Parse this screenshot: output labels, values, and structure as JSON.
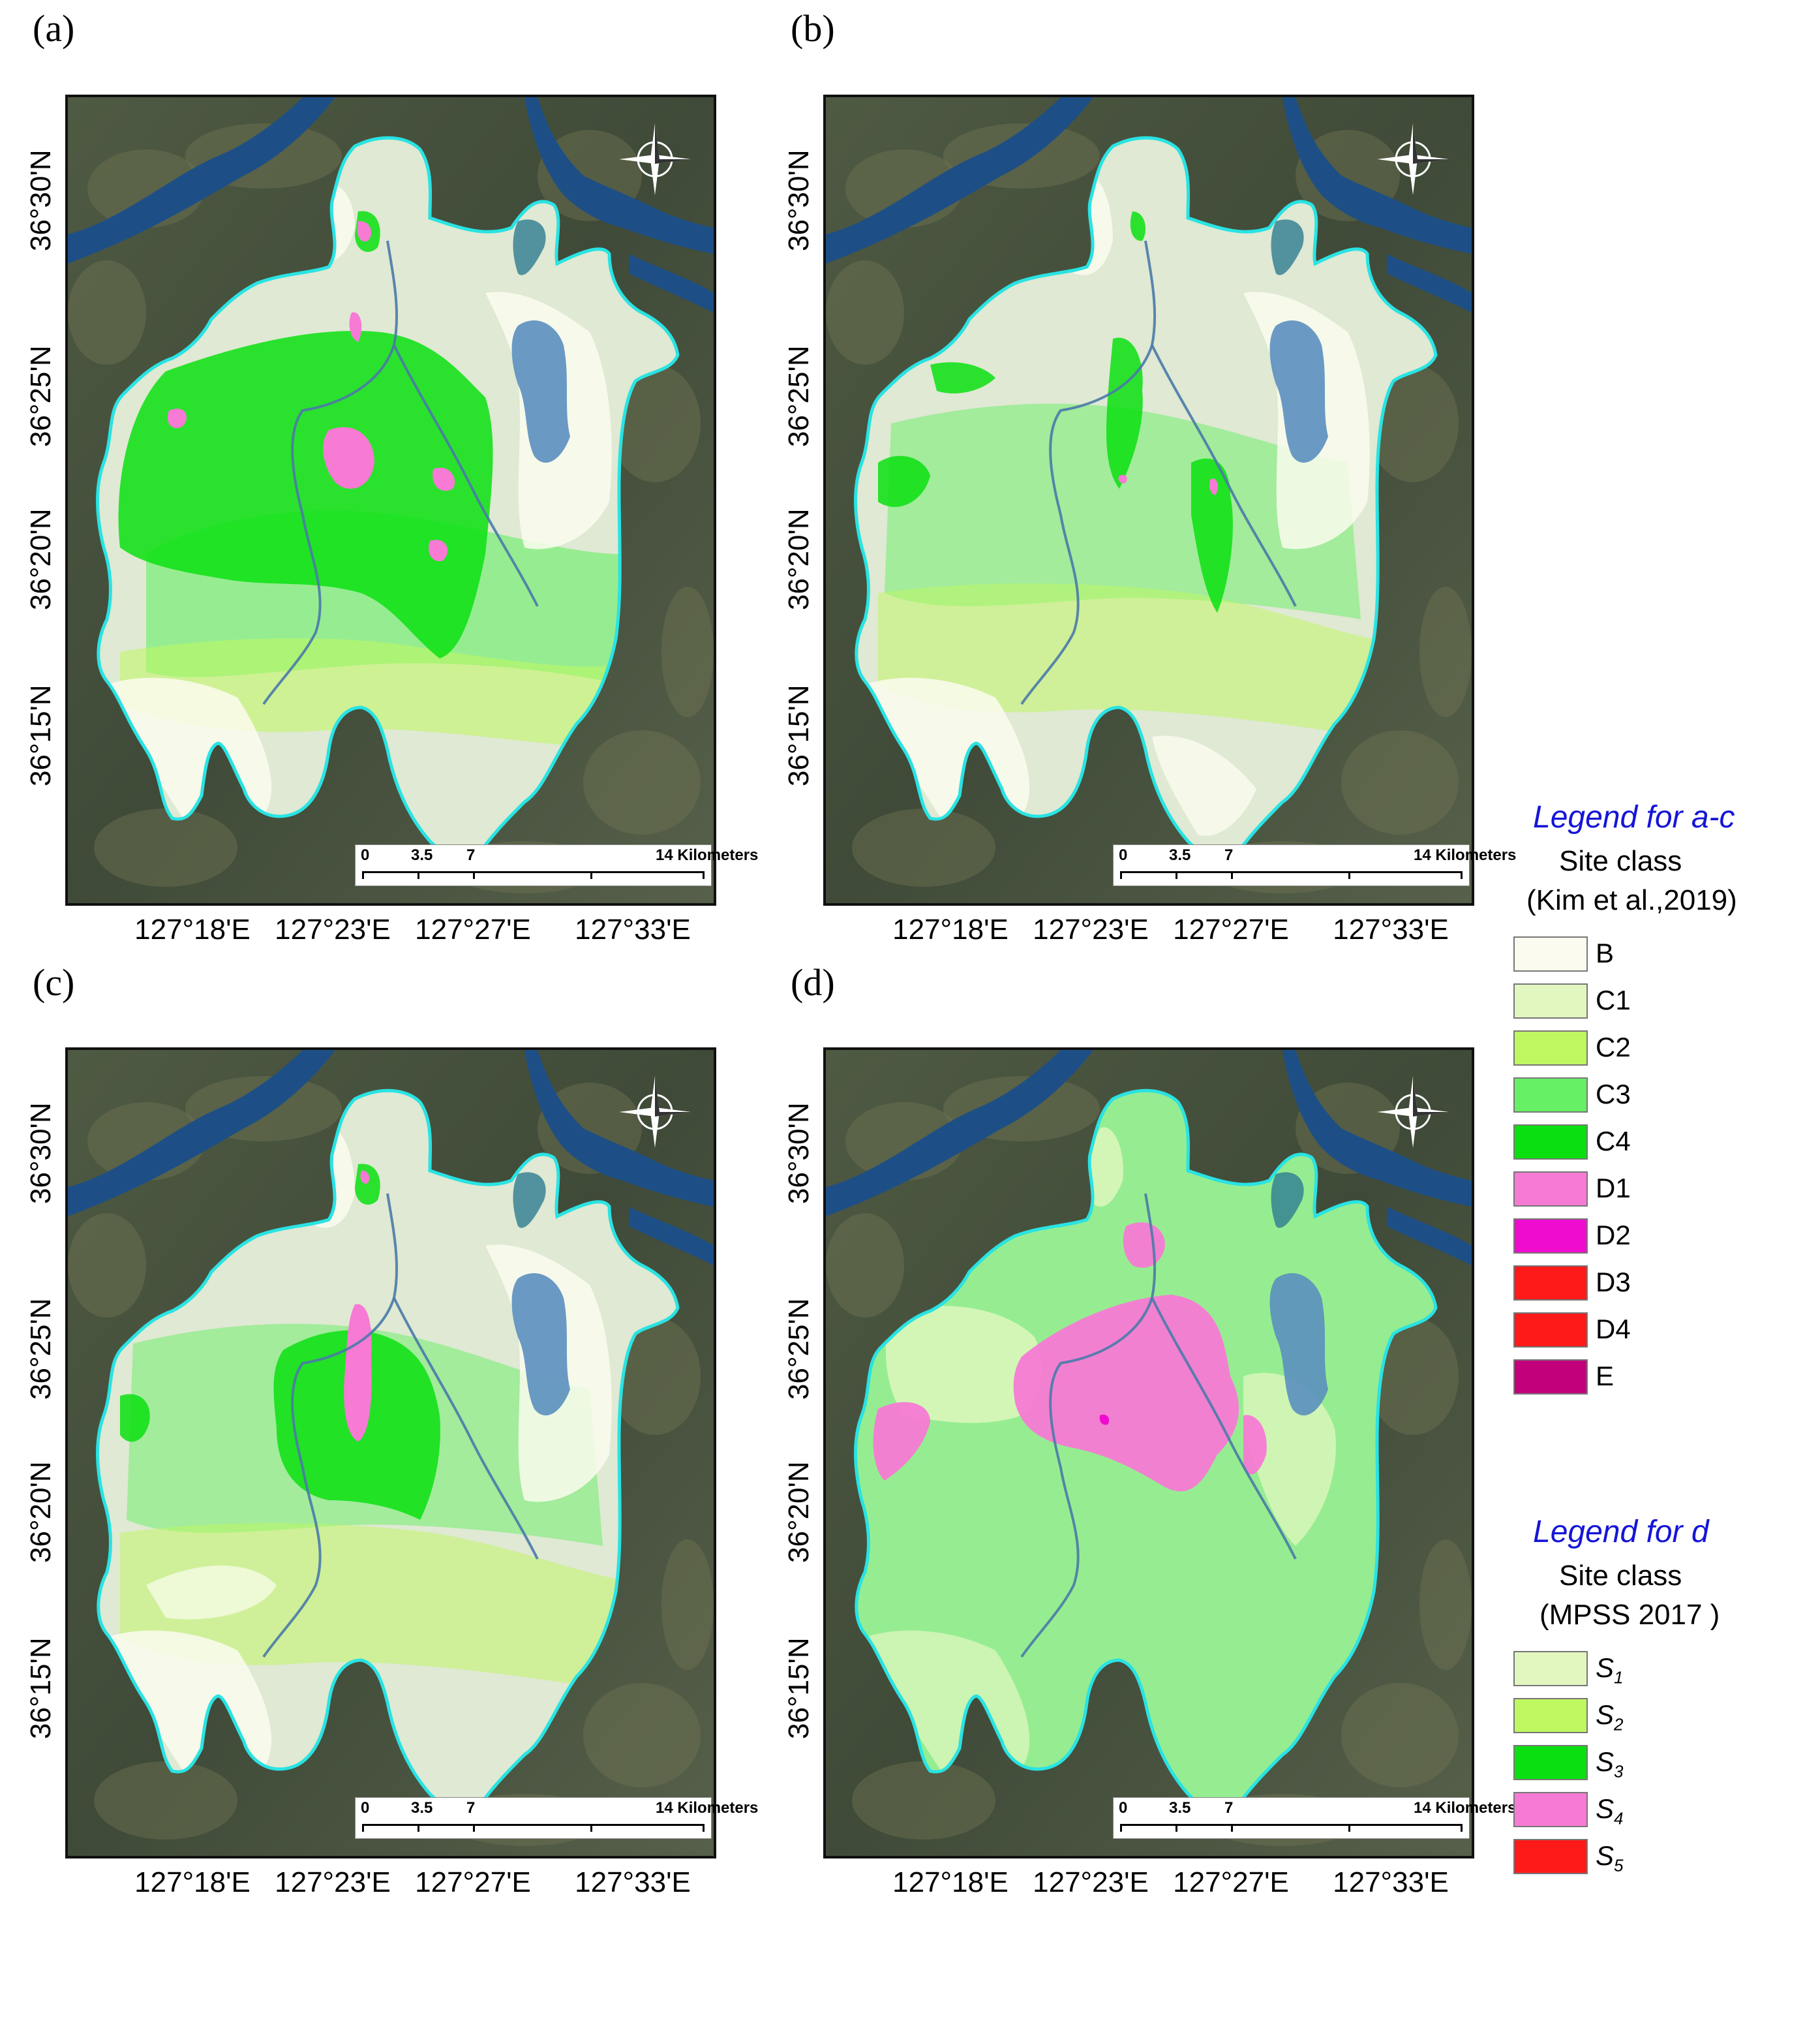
{
  "panels": [
    {
      "id": "a",
      "label": "(a)"
    },
    {
      "id": "b",
      "label": "(b)"
    },
    {
      "id": "c",
      "label": "(c)"
    },
    {
      "id": "d",
      "label": "(d)"
    }
  ],
  "latitude_labels": [
    "36°30'N",
    "36°25'N",
    "36°20'N",
    "36°15'N"
  ],
  "longitude_labels": [
    "127°18'E",
    "127°23'E",
    "127°27'E",
    "127°33'E"
  ],
  "scale_bar": {
    "ticks": [
      "0",
      "3.5",
      "7",
      "14 Kilometers"
    ]
  },
  "legend_ac": {
    "title": "Legend for a-c",
    "subtitle_line1": "Site class",
    "subtitle_line2": "(Kim et al.,2019)",
    "items": [
      {
        "label": "B",
        "color": "#fbfcef"
      },
      {
        "label": "C1",
        "color": "#e2f7c0"
      },
      {
        "label": "C2",
        "color": "#bff760"
      },
      {
        "label": "C3",
        "color": "#66f066"
      },
      {
        "label": "C4",
        "color": "#0ae010"
      },
      {
        "label": "D1",
        "color": "#f77ad4"
      },
      {
        "label": "D2",
        "color": "#f00ccf"
      },
      {
        "label": "D3",
        "color": "#ff1a1a"
      },
      {
        "label": "D4",
        "color": "#ff1a1a"
      },
      {
        "label": "E",
        "color": "#c2007c"
      }
    ]
  },
  "legend_d": {
    "title": "Legend for d",
    "subtitle_line1": "Site class",
    "subtitle_line2": "(MPSS 2017 )",
    "items": [
      {
        "main": "S",
        "sub": "1",
        "color": "#e2f7c0"
      },
      {
        "main": "S",
        "sub": "2",
        "color": "#bff760"
      },
      {
        "main": "S",
        "sub": "3",
        "color": "#0ae010"
      },
      {
        "main": "S",
        "sub": "4",
        "color": "#f77ad4"
      },
      {
        "main": "S",
        "sub": "5",
        "color": "#ff1a1a"
      }
    ]
  }
}
